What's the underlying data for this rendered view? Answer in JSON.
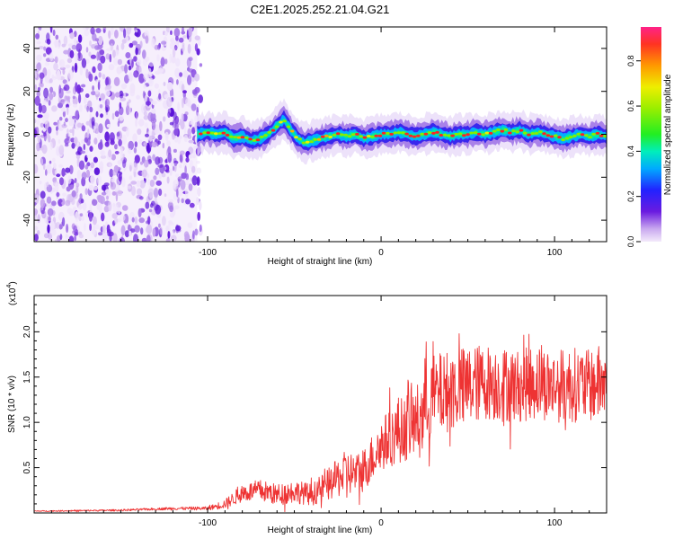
{
  "title": "C2E1.2025.252.21.04.G21",
  "chart_data": [
    {
      "type": "heatmap",
      "xlabel": "Height of straight line (km)",
      "ylabel": "Frequency (Hz)",
      "xlim": [
        -200,
        130
      ],
      "ylim": [
        -50,
        50
      ],
      "xticks": [
        -100,
        0,
        100
      ],
      "xtick_labels": [
        "-100",
        "0",
        "100"
      ],
      "yticks": [
        -40,
        -20,
        0,
        20,
        40
      ],
      "ytick_labels": [
        "-40",
        "-20",
        "0",
        "20",
        "40"
      ],
      "colorbar": {
        "label": "Normalized spectral amplitude",
        "range": [
          0,
          0.95
        ],
        "ticks": [
          "0.0",
          "0.2",
          "0.4",
          "0.6",
          "0.8"
        ],
        "tick_values": [
          0.0,
          0.2,
          0.4,
          0.6,
          0.8
        ]
      },
      "noise_region_x": [
        -200,
        -106
      ],
      "signal_trace": {
        "x": [
          -106,
          -100,
          -95,
          -90,
          -85,
          -80,
          -75,
          -70,
          -65,
          -60,
          -56,
          -52,
          -48,
          -44,
          -40,
          -35,
          -30,
          -25,
          -20,
          -15,
          -10,
          -5,
          0,
          5,
          10,
          15,
          20,
          25,
          30,
          35,
          40,
          45,
          50,
          55,
          60,
          65,
          70,
          75,
          80,
          85,
          90,
          95,
          100,
          105,
          110,
          115,
          120,
          125,
          130
        ],
        "frequency_hz": [
          0,
          1,
          0,
          1,
          -2,
          -1,
          -3,
          -2,
          0,
          4,
          7,
          2,
          -2,
          -4,
          -3,
          -2,
          -1,
          0,
          -1,
          0,
          -2,
          -1,
          0,
          0,
          1,
          0,
          -1,
          0,
          1,
          0,
          -1,
          0,
          0,
          1,
          0,
          1,
          2,
          1,
          2,
          0,
          1,
          0,
          -1,
          -2,
          -1,
          0,
          -1,
          0,
          -1
        ]
      }
    },
    {
      "type": "line",
      "xlabel": "Height of straight line (km)",
      "ylabel": "SNR (10 * v/v)",
      "multiplier_label": "(x10",
      "multiplier_exponent": "4",
      "xlim": [
        -200,
        130
      ],
      "ylim": [
        0,
        2.4
      ],
      "xticks": [
        -100,
        0,
        100
      ],
      "xtick_labels": [
        "-100",
        "0",
        "100"
      ],
      "yticks": [
        0.5,
        1.0,
        1.5,
        2.0
      ],
      "ytick_labels": [
        "0.5",
        "1.0",
        "1.5",
        "2.0"
      ],
      "series": [
        {
          "name": "SNR",
          "color": "#ee3333",
          "x": [
            -200,
            -150,
            -120,
            -100,
            -90,
            -80,
            -70,
            -60,
            -50,
            -40,
            -30,
            -20,
            -12,
            0,
            10,
            20,
            30,
            40,
            50,
            60,
            70,
            80,
            90,
            100,
            110,
            120,
            130
          ],
          "y": [
            0.02,
            0.03,
            0.05,
            0.05,
            0.1,
            0.22,
            0.25,
            0.2,
            0.24,
            0.2,
            0.32,
            0.45,
            0.42,
            0.75,
            0.9,
            1.0,
            1.3,
            1.35,
            1.4,
            1.45,
            1.42,
            1.4,
            1.45,
            1.4,
            1.42,
            1.4,
            1.45
          ],
          "amp": [
            0.005,
            0.01,
            0.015,
            0.02,
            0.05,
            0.1,
            0.12,
            0.12,
            0.13,
            0.12,
            0.18,
            0.25,
            0.22,
            0.3,
            0.35,
            0.4,
            0.45,
            0.45,
            0.45,
            0.42,
            0.42,
            0.4,
            0.42,
            0.4,
            0.42,
            0.4,
            0.45
          ]
        }
      ]
    }
  ]
}
